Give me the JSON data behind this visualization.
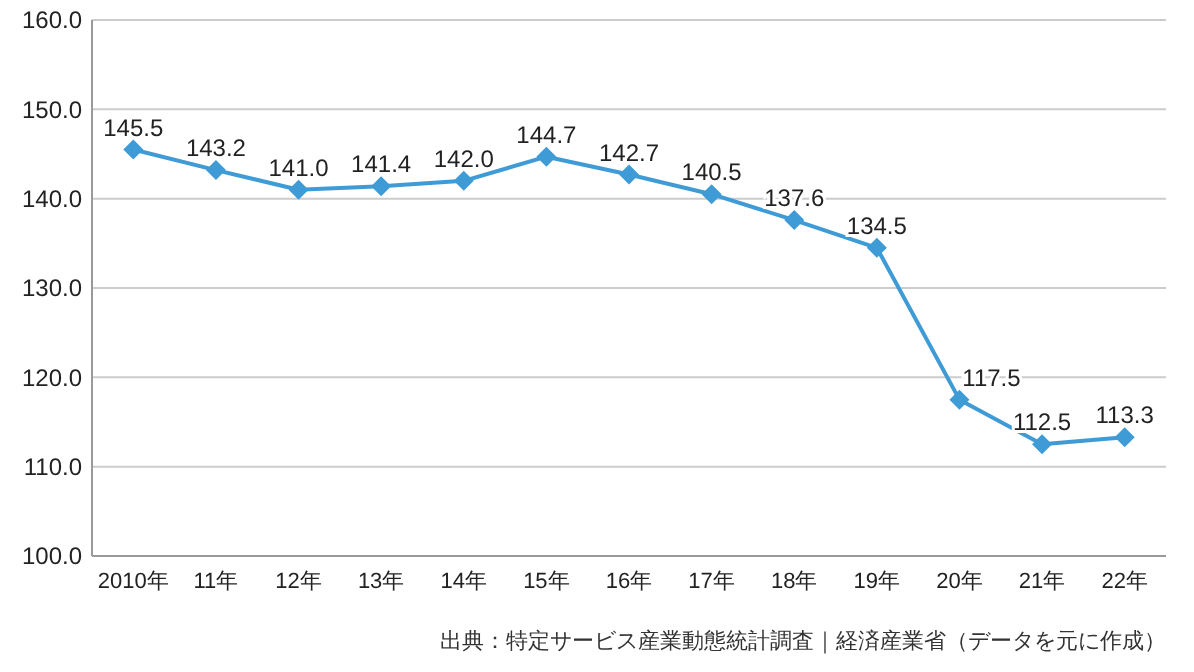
{
  "chart_data": {
    "type": "line",
    "categories": [
      "2010年",
      "11年",
      "12年",
      "13年",
      "14年",
      "15年",
      "16年",
      "17年",
      "18年",
      "19年",
      "20年",
      "21年",
      "22年"
    ],
    "series": [
      {
        "color": "#3f9bd6",
        "values": [
          145.5,
          143.2,
          141.0,
          141.4,
          142.0,
          144.7,
          142.7,
          140.5,
          137.6,
          134.5,
          117.5,
          112.5,
          113.3
        ],
        "value_labels": [
          "145.5",
          "143.2",
          "141.0",
          "141.4",
          "142.0",
          "144.7",
          "142.7",
          "140.5",
          "137.6",
          "134.5",
          "117.5",
          "112.5",
          "113.3"
        ]
      }
    ],
    "ylim": [
      100,
      160
    ],
    "yticks": [
      {
        "value": 100,
        "label": "100.0"
      },
      {
        "value": 110,
        "label": "110.0"
      },
      {
        "value": 120,
        "label": "120.0"
      },
      {
        "value": 130,
        "label": "130.0"
      },
      {
        "value": 140,
        "label": "140.0"
      },
      {
        "value": 150,
        "label": "150.0"
      },
      {
        "value": 160,
        "label": "160.0"
      }
    ],
    "grid": "y",
    "marker": "diamond",
    "line_style": "solid",
    "annotations": [
      "出典：特定サービス産業動態統計調査｜経済産業省（データを元に作成）"
    ]
  }
}
